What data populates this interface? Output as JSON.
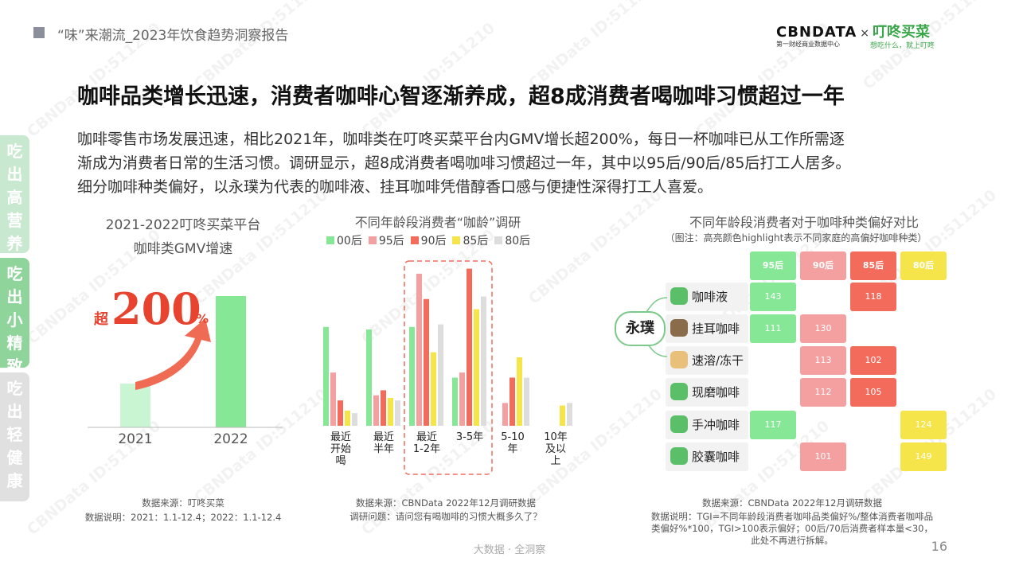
{
  "header": {
    "report_title": "“味”来潮流_2023年饮食趋势洞察报告"
  },
  "logo": {
    "brand1": "CBNDATA",
    "times": "×",
    "brand2": "叮咚买菜",
    "brand1_sub": "第一财经商业数据中心",
    "brand2_sub": "想吃什么，就上叮咚"
  },
  "page": {
    "title": "咖啡品类增长迅速，消费者咖啡心智逐渐养成，超8成消费者喝咖啡习惯超过一年",
    "body_lines": [
      "咖啡零售市场发展迅速，相比2021年，咖啡类在叮咚买菜平台内GMV增长超200%，每日一杯咖啡已从工作所需逐",
      "渐成为消费者日常的生活习惯。调研显示，超8成消费者喝咖啡习惯超过一年，其中以95后/90后/85后打工人居多。",
      "细分咖啡种类偏好，以永璞为代表的咖啡液、挂耳咖啡凭借醇香口感与便捷性深得打工人喜爱。"
    ],
    "page_number": "16",
    "footer_slogan": "大数据 · 全洞察",
    "watermark": "CBNData ID:511210"
  },
  "sidebar": [
    {
      "chars": [
        "吃",
        "出",
        "高",
        "营",
        "养"
      ],
      "color": "#c8e8cf"
    },
    {
      "chars": [
        "吃",
        "出",
        "小",
        "精",
        "致"
      ],
      "color": "#8fd49b"
    },
    {
      "chars": [
        "吃",
        "出",
        "轻",
        "健",
        "康"
      ],
      "color": "#e0e0e0"
    }
  ],
  "chart_data": [
    {
      "type": "bar",
      "title": "2021-2022叮咚买菜平台咖啡类GMV增速",
      "title_lines": [
        "2021-2022叮咚买菜平台",
        "咖啡类GMV增速"
      ],
      "categories": [
        "2021",
        "2022"
      ],
      "values": [
        1,
        3
      ],
      "colors": [
        "#c9f5d2",
        "#86e896"
      ],
      "annotation": {
        "prefix": "超",
        "value": "200",
        "suffix": "%"
      },
      "source": "数据来源：叮咚买菜",
      "note": "数据说明：2021：1.1-12.4；2022：1.1-12.4"
    },
    {
      "type": "bar",
      "title": "不同年龄段消费者“咖龄”调研",
      "categories": [
        [
          "最近",
          "开始",
          "喝"
        ],
        [
          "最近",
          "半年"
        ],
        [
          "最近",
          "1-2年"
        ],
        [
          "3-5年"
        ],
        [
          "5-10",
          "年"
        ],
        [
          "10年",
          "及以",
          "上"
        ]
      ],
      "series": [
        {
          "name": "00后",
          "color": "#86e896",
          "values": [
            39,
            38,
            39,
            19,
            0,
            0
          ]
        },
        {
          "name": "95后",
          "color": "#f5a0a0",
          "values": [
            21,
            12,
            60,
            21,
            9,
            0
          ]
        },
        {
          "name": "90后",
          "color": "#f26b5b",
          "values": [
            10,
            14,
            50,
            62,
            19,
            0
          ]
        },
        {
          "name": "85后",
          "color": "#f5e54a",
          "values": [
            6,
            11,
            29,
            46,
            27,
            8
          ]
        },
        {
          "name": "80后",
          "color": "#dddddd",
          "values": [
            5,
            10,
            40,
            51,
            19,
            9
          ]
        }
      ],
      "ylim": [
        0,
        65
      ],
      "highlight_categories": [
        2,
        3
      ],
      "source": "数据来源：CBNData 2022年12月调研数据",
      "note": "调研问题：请问您有喝咖啡的习惯大概多久了？"
    },
    {
      "type": "heatmap",
      "title": "不同年龄段消费者对于咖啡种类偏好对比",
      "subtitle": "（图注：高亮颜色highlight表示不同家庭的高偏好咖啡种类）",
      "columns": [
        {
          "label": "95后",
          "color": "#86e896"
        },
        {
          "label": "90后",
          "color": "#f5a0a0"
        },
        {
          "label": "85后",
          "color": "#f26b5b"
        },
        {
          "label": "80后",
          "color": "#f5e54a"
        }
      ],
      "brand_label": "永璞",
      "rows": [
        {
          "label": "咖啡液",
          "icon": "coffee-liquid-icon",
          "values": [
            143,
            null,
            118,
            null
          ]
        },
        {
          "label": "挂耳咖啡",
          "icon": "drip-coffee-icon",
          "values": [
            111,
            130,
            null,
            null
          ]
        },
        {
          "label": "速溶/冻干",
          "icon": "instant-coffee-icon",
          "values": [
            null,
            113,
            102,
            null
          ]
        },
        {
          "label": "现磨咖啡",
          "icon": "coffee-bean-icon",
          "values": [
            null,
            112,
            105,
            null
          ]
        },
        {
          "label": "手冲咖啡",
          "icon": "pour-over-icon",
          "values": [
            117,
            null,
            null,
            124
          ]
        },
        {
          "label": "胶囊咖啡",
          "icon": "capsule-icon",
          "values": [
            null,
            101,
            null,
            149
          ]
        }
      ],
      "source": "数据来源：CBNData 2022年12月调研数据",
      "note_lines": [
        "数据说明：TGI=不同年龄段消费者咖啡品类偏好%/整体消费者咖啡品",
        "类偏好%*100，TGI>100表示偏好；00后/70后消费者样本量<30，",
        "此处不再进行拆解。"
      ]
    }
  ]
}
